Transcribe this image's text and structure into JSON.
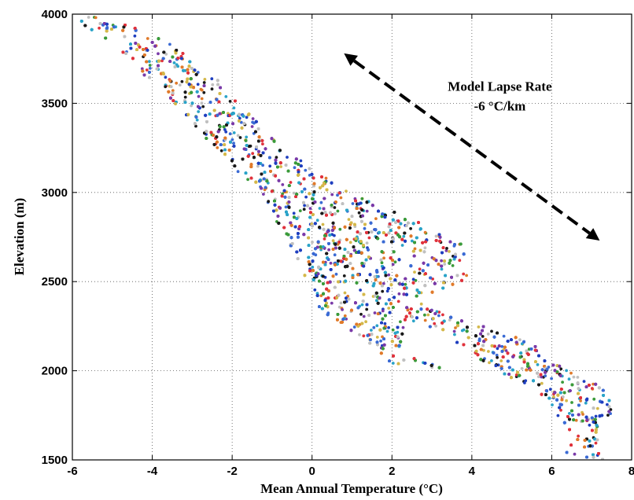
{
  "chart_data": {
    "type": "scatter",
    "title": "",
    "xlabel": "Mean Annual Temperature (°C)",
    "ylabel": "Elevation (m)",
    "xlim": [
      -6,
      8
    ],
    "ylim": [
      1500,
      4000
    ],
    "xticks": [
      "-6",
      "-4",
      "-2",
      "0",
      "2",
      "4",
      "6",
      "8"
    ],
    "yticks": [
      "1500",
      "2000",
      "2500",
      "3000",
      "3500",
      "4000"
    ],
    "grid": true,
    "legend": "none",
    "marker_colors": [
      "#1f3fbf",
      "#e0323c",
      "#2aa3c8",
      "#d4b84a",
      "#3a9a3a",
      "#7a3aa8",
      "#e07a2a",
      "#1a1a1a",
      "#3a6ad4",
      "#c0c0c0"
    ],
    "point_cloud_outline": [
      [
        -5.6,
        3990
      ],
      [
        -4.8,
        3960
      ],
      [
        -3.5,
        3830
      ],
      [
        -2.6,
        3700
      ],
      [
        -1.8,
        3490
      ],
      [
        -0.8,
        3260
      ],
      [
        0.5,
        3060
      ],
      [
        1.6,
        2930
      ],
      [
        2.9,
        2820
      ],
      [
        3.8,
        2720
      ],
      [
        3.9,
        2520
      ],
      [
        2.6,
        2390
      ],
      [
        4.2,
        2270
      ],
      [
        5.6,
        2140
      ],
      [
        6.4,
        2000
      ],
      [
        7.2,
        1920
      ],
      [
        7.6,
        1790
      ],
      [
        7.1,
        1650
      ],
      [
        7.3,
        1500
      ],
      [
        6.3,
        1500
      ],
      [
        6.5,
        1640
      ],
      [
        5.9,
        1820
      ],
      [
        4.6,
        2000
      ],
      [
        3.4,
        2180
      ],
      [
        2.4,
        2290
      ],
      [
        2.2,
        2100
      ],
      [
        3.4,
        2010
      ],
      [
        2.0,
        2040
      ],
      [
        0.9,
        2240
      ],
      [
        0.2,
        2340
      ],
      [
        -0.2,
        2540
      ],
      [
        -0.6,
        2720
      ],
      [
        -1.2,
        2960
      ],
      [
        -2.6,
        3290
      ],
      [
        -3.8,
        3570
      ],
      [
        -5.0,
        3830
      ],
      [
        -5.9,
        3970
      ]
    ],
    "annotations": [
      {
        "text": "Model Lapse Rate",
        "x": 4.7,
        "y": 3570
      },
      {
        "text": "-6 °C/km",
        "x": 4.7,
        "y": 3460
      }
    ],
    "arrow": {
      "style": "dashed",
      "heads": "both",
      "from": [
        0.8,
        3780
      ],
      "to": [
        7.2,
        2730
      ]
    }
  }
}
